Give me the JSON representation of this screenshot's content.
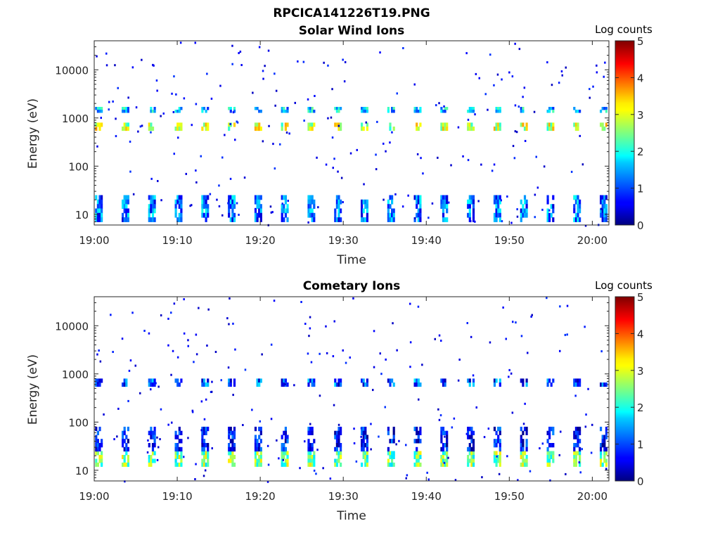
{
  "figure_title": "RPCICA141226T19.PNG",
  "chart_data": [
    {
      "type": "heatmap",
      "title": "Solar Wind Ions",
      "xlabel": "Time",
      "ylabel": "Energy (eV)",
      "x_ticks": [
        "19:00",
        "19:10",
        "19:20",
        "19:30",
        "19:40",
        "19:50",
        "20:00"
      ],
      "y_ticks": [
        "10",
        "100",
        "1000",
        "10000"
      ],
      "y_scale": "log",
      "ylim": [
        6,
        40000
      ],
      "xlim": [
        "19:00",
        "20:02"
      ],
      "colorbar": {
        "label": "Log counts",
        "ticks": [
          "0",
          "1",
          "2",
          "3",
          "4",
          "5"
        ],
        "range": [
          0,
          5
        ],
        "colormap": "jet"
      },
      "sweep_period_min": 3.2,
      "bands": [
        {
          "energy_range_eV": [
            550,
            800
          ],
          "log_counts": 2.8
        },
        {
          "energy_range_eV": [
            1300,
            1700
          ],
          "log_counts": 1.6
        },
        {
          "energy_range_eV": [
            7,
            25
          ],
          "log_counts": 1.2
        }
      ]
    },
    {
      "type": "heatmap",
      "title": "Cometary Ions",
      "xlabel": "Time",
      "ylabel": "Energy (eV)",
      "x_ticks": [
        "19:00",
        "19:10",
        "19:20",
        "19:30",
        "19:40",
        "19:50",
        "20:00"
      ],
      "y_ticks": [
        "10",
        "100",
        "1000",
        "10000"
      ],
      "y_scale": "log",
      "ylim": [
        6,
        40000
      ],
      "xlim": [
        "19:00",
        "20:02"
      ],
      "colorbar": {
        "label": "Log counts",
        "ticks": [
          "0",
          "1",
          "2",
          "3",
          "4",
          "5"
        ],
        "range": [
          0,
          5
        ],
        "colormap": "jet"
      },
      "sweep_period_min": 3.2,
      "bands": [
        {
          "energy_range_eV": [
            550,
            800
          ],
          "log_counts": 1.0
        },
        {
          "energy_range_eV": [
            12,
            25
          ],
          "log_counts": 2.5
        },
        {
          "energy_range_eV": [
            25,
            80
          ],
          "log_counts": 0.5
        }
      ]
    }
  ]
}
